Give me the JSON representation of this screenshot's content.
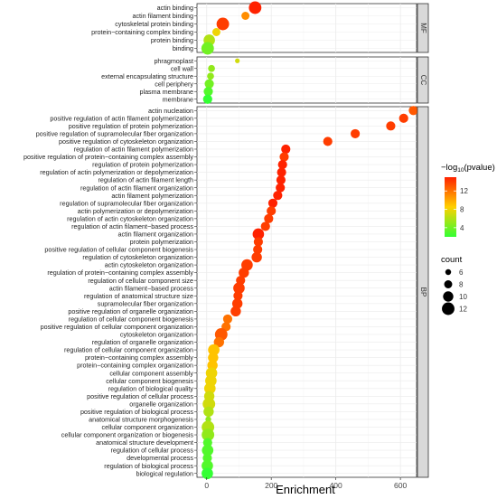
{
  "chart_data": {
    "type": "scatter",
    "xlabel": "Enrichment",
    "ylabel": "",
    "xlim": [
      -30,
      650
    ],
    "x_ticks": [
      0,
      200,
      400,
      600
    ],
    "grid": true,
    "legend_placement": "right",
    "color_legend": {
      "title_prefix": "−log",
      "title_sub": "10",
      "title_suffix": "(pvalue)",
      "ticks": [
        4,
        8,
        12
      ],
      "low_color": "#33ff33",
      "mid_color": "#ffd000",
      "high_color": "#ff2200",
      "range": [
        2,
        15
      ]
    },
    "size_legend": {
      "title": "count",
      "values": [
        6,
        8,
        10,
        12
      ]
    },
    "facets": [
      {
        "name": "MF",
        "rows": [
          {
            "term": "actin binding",
            "enrichment": 150,
            "count": 12,
            "pvalue": 15
          },
          {
            "term": "actin filament binding",
            "enrichment": 120,
            "count": 8,
            "pvalue": 11
          },
          {
            "term": "cytoskeletal protein binding",
            "enrichment": 50,
            "count": 12,
            "pvalue": 14
          },
          {
            "term": "protein−containing complex binding",
            "enrichment": 30,
            "count": 8,
            "pvalue": 8
          },
          {
            "term": "protein binding",
            "enrichment": 8,
            "count": 11,
            "pvalue": 6
          },
          {
            "term": "binding",
            "enrichment": 3,
            "count": 12,
            "pvalue": 4
          }
        ]
      },
      {
        "name": "CC",
        "rows": [
          {
            "term": "phragmoplast",
            "enrichment": 95,
            "count": 5,
            "pvalue": 7
          },
          {
            "term": "cell wall",
            "enrichment": 15,
            "count": 7,
            "pvalue": 5
          },
          {
            "term": "external encapsulating structure",
            "enrichment": 12,
            "count": 7,
            "pvalue": 5
          },
          {
            "term": "cell periphery",
            "enrichment": 8,
            "count": 9,
            "pvalue": 4
          },
          {
            "term": "plasma membrane",
            "enrichment": 5,
            "count": 9,
            "pvalue": 3
          },
          {
            "term": "membrane",
            "enrichment": 3,
            "count": 9,
            "pvalue": 2
          }
        ]
      },
      {
        "name": "BP",
        "rows": [
          {
            "term": "actin nucleation",
            "enrichment": 640,
            "count": 9,
            "pvalue": 13
          },
          {
            "term": "positive regulation of actin filament polymerization",
            "enrichment": 610,
            "count": 9,
            "pvalue": 14
          },
          {
            "term": "positive regulation of protein polymerization",
            "enrichment": 570,
            "count": 9,
            "pvalue": 14
          },
          {
            "term": "positive regulation of supramolecular fiber organization",
            "enrichment": 460,
            "count": 9,
            "pvalue": 14
          },
          {
            "term": "positive regulation of cytoskeleton organization",
            "enrichment": 375,
            "count": 9,
            "pvalue": 14
          },
          {
            "term": "regulation of actin filament polymerization",
            "enrichment": 245,
            "count": 9,
            "pvalue": 15
          },
          {
            "term": "positive regulation of protein−containing complex assembly",
            "enrichment": 240,
            "count": 9,
            "pvalue": 14
          },
          {
            "term": "regulation of protein polymerization",
            "enrichment": 235,
            "count": 9,
            "pvalue": 15
          },
          {
            "term": "regulation of actin polymerization or depolymerization",
            "enrichment": 232,
            "count": 9,
            "pvalue": 15
          },
          {
            "term": "regulation of actin filament length",
            "enrichment": 230,
            "count": 9,
            "pvalue": 15
          },
          {
            "term": "regulation of actin filament organization",
            "enrichment": 228,
            "count": 9,
            "pvalue": 15
          },
          {
            "term": "actin filament polymerization",
            "enrichment": 220,
            "count": 9,
            "pvalue": 15
          },
          {
            "term": "regulation of supramolecular fiber organization",
            "enrichment": 205,
            "count": 9,
            "pvalue": 15
          },
          {
            "term": "actin polymerization or depolymerization",
            "enrichment": 200,
            "count": 9,
            "pvalue": 14
          },
          {
            "term": "regulation of actin cytoskeleton organization",
            "enrichment": 192,
            "count": 9,
            "pvalue": 14
          },
          {
            "term": "regulation of actin filament−based process",
            "enrichment": 182,
            "count": 9,
            "pvalue": 14
          },
          {
            "term": "actin filament organization",
            "enrichment": 160,
            "count": 11,
            "pvalue": 15
          },
          {
            "term": "protein polymerization",
            "enrichment": 160,
            "count": 9,
            "pvalue": 14
          },
          {
            "term": "positive regulation of cellular component biogenesis",
            "enrichment": 158,
            "count": 9,
            "pvalue": 14
          },
          {
            "term": "regulation of cytoskeleton organization",
            "enrichment": 155,
            "count": 10,
            "pvalue": 14
          },
          {
            "term": "actin cytoskeleton organization",
            "enrichment": 125,
            "count": 11,
            "pvalue": 14
          },
          {
            "term": "regulation of protein−containing complex assembly",
            "enrichment": 115,
            "count": 10,
            "pvalue": 14
          },
          {
            "term": "regulation of cellular component size",
            "enrichment": 105,
            "count": 9,
            "pvalue": 14
          },
          {
            "term": "actin filament−based process",
            "enrichment": 100,
            "count": 11,
            "pvalue": 14
          },
          {
            "term": "regulation of anatomical structure size",
            "enrichment": 97,
            "count": 9,
            "pvalue": 14
          },
          {
            "term": "supramolecular fiber organization",
            "enrichment": 95,
            "count": 10,
            "pvalue": 14
          },
          {
            "term": "positive regulation of organelle organization",
            "enrichment": 90,
            "count": 10,
            "pvalue": 14
          },
          {
            "term": "regulation of cellular component biogenesis",
            "enrichment": 65,
            "count": 9,
            "pvalue": 12
          },
          {
            "term": "positive regulation of cellular component organization",
            "enrichment": 60,
            "count": 9,
            "pvalue": 12
          },
          {
            "term": "cytoskeleton organization",
            "enrichment": 45,
            "count": 12,
            "pvalue": 13
          },
          {
            "term": "regulation of organelle organization",
            "enrichment": 38,
            "count": 10,
            "pvalue": 12
          },
          {
            "term": "regulation of cellular component organization",
            "enrichment": 22,
            "count": 11,
            "pvalue": 9
          },
          {
            "term": "protein−containing complex assembly",
            "enrichment": 20,
            "count": 10,
            "pvalue": 9
          },
          {
            "term": "protein−containing complex organization",
            "enrichment": 18,
            "count": 10,
            "pvalue": 9
          },
          {
            "term": "cellular component assembly",
            "enrichment": 15,
            "count": 11,
            "pvalue": 8
          },
          {
            "term": "cellular component biogenesis",
            "enrichment": 13,
            "count": 11,
            "pvalue": 8
          },
          {
            "term": "regulation of biological quality",
            "enrichment": 10,
            "count": 11,
            "pvalue": 8
          },
          {
            "term": "positive regulation of cellular process",
            "enrichment": 8,
            "count": 10,
            "pvalue": 7
          },
          {
            "term": "organelle organization",
            "enrichment": 7,
            "count": 12,
            "pvalue": 7
          },
          {
            "term": "positive regulation of biological process",
            "enrichment": 6,
            "count": 10,
            "pvalue": 6
          },
          {
            "term": "anatomical structure morphogenesis",
            "enrichment": 5,
            "count": 6,
            "pvalue": 5
          },
          {
            "term": "cellular component organization",
            "enrichment": 4,
            "count": 12,
            "pvalue": 6
          },
          {
            "term": "cellular component organization or biogenesis",
            "enrichment": 4,
            "count": 12,
            "pvalue": 5
          },
          {
            "term": "anatomical structure development",
            "enrichment": 3,
            "count": 9,
            "pvalue": 3
          },
          {
            "term": "regulation of cellular process",
            "enrichment": 3,
            "count": 11,
            "pvalue": 3
          },
          {
            "term": "developmental process",
            "enrichment": 2,
            "count": 9,
            "pvalue": 3
          },
          {
            "term": "regulation of biological process",
            "enrichment": 2,
            "count": 11,
            "pvalue": 3
          },
          {
            "term": "biological regulation",
            "enrichment": 2,
            "count": 11,
            "pvalue": 2
          }
        ]
      }
    ]
  }
}
